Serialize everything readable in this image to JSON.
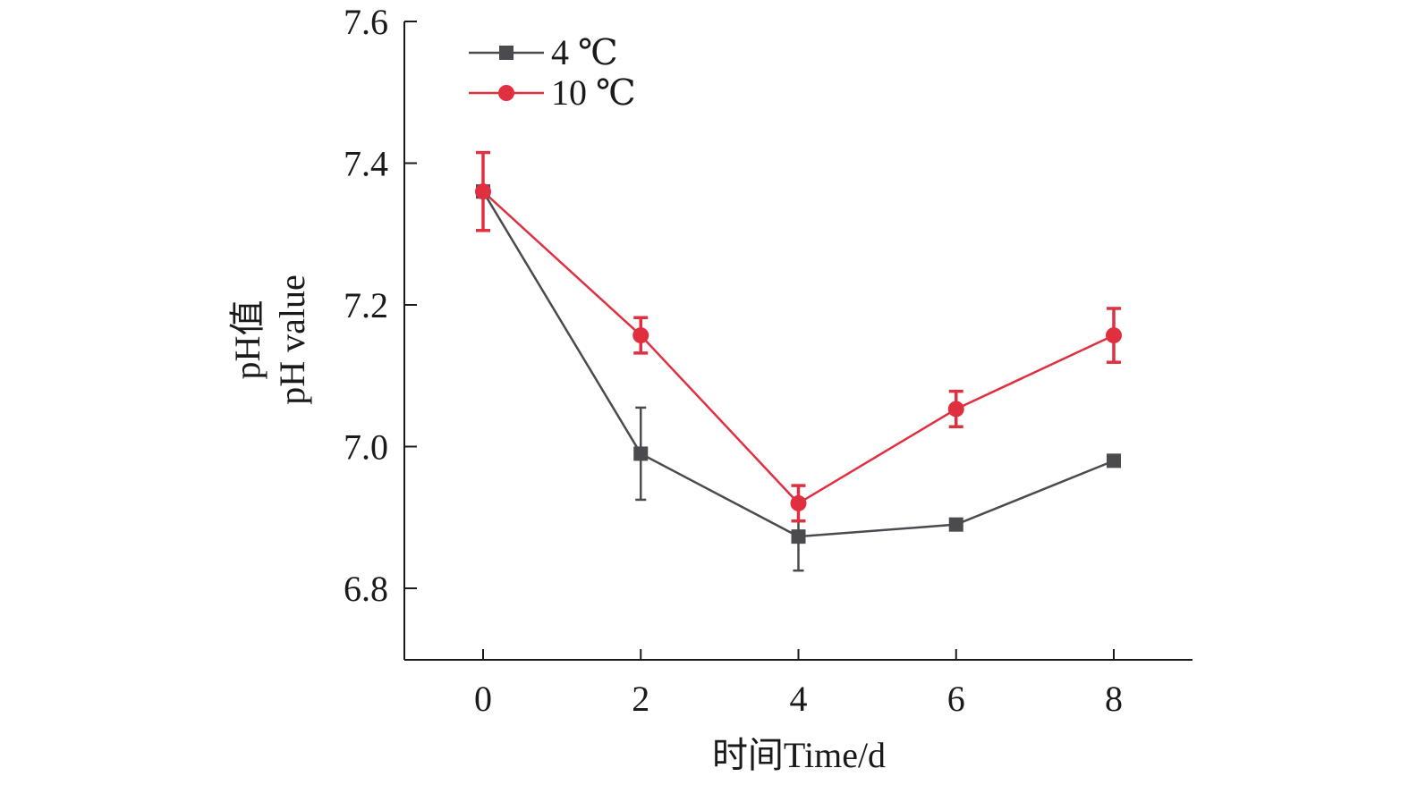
{
  "chart_data": {
    "type": "line",
    "x": [
      0,
      2,
      4,
      6,
      8
    ],
    "xlabel": "时间Time/d",
    "ylabel_cn": "pH值",
    "ylabel_en": "pH value",
    "xlim": [
      -1,
      9
    ],
    "ylim": [
      6.7,
      7.6
    ],
    "x_ticks": [
      "0",
      "2",
      "4",
      "6",
      "8"
    ],
    "y_ticks": [
      "6.8",
      "7.0",
      "7.2",
      "7.4",
      "7.6"
    ],
    "grid": false,
    "legend_position": "top-left",
    "series": [
      {
        "name": "4 ℃",
        "color": "#4a4a4f",
        "marker": "square",
        "values": [
          7.36,
          6.99,
          6.873,
          6.89,
          6.98
        ],
        "errors": [
          0.0,
          0.065,
          0.048,
          0.008,
          0.008
        ]
      },
      {
        "name": "10 ℃",
        "color": "#e03040",
        "marker": "circle",
        "values": [
          7.36,
          7.157,
          6.92,
          7.053,
          7.157
        ],
        "errors": [
          0.055,
          0.025,
          0.025,
          0.025,
          0.038
        ]
      }
    ]
  }
}
